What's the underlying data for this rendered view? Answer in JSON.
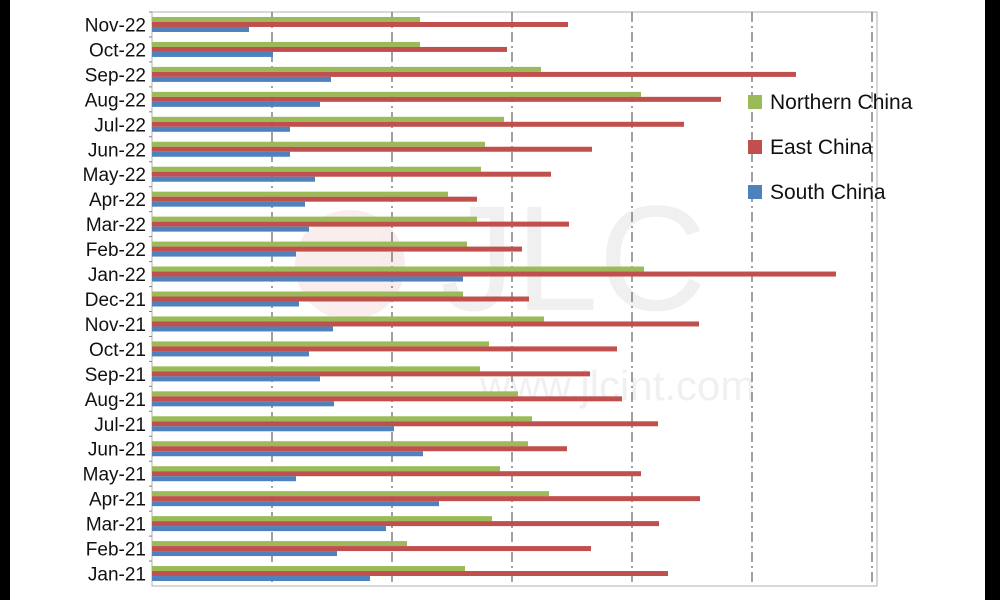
{
  "chart_data": {
    "type": "bar",
    "orientation": "horizontal",
    "title": "",
    "xlabel": "",
    "ylabel": "",
    "categories": [
      "Nov-22",
      "Oct-22",
      "Sep-22",
      "Aug-22",
      "Jul-22",
      "Jun-22",
      "May-22",
      "Apr-22",
      "Mar-22",
      "Feb-22",
      "Jan-22",
      "Dec-21",
      "Nov-21",
      "Oct-21",
      "Sep-21",
      "Aug-21",
      "Jul-21",
      "Jun-21",
      "May-21",
      "Apr-21",
      "Mar-21",
      "Feb-21",
      "Jan-21"
    ],
    "series": [
      {
        "name": "Northern China",
        "color": "#9bbb59",
        "values": [
          268,
          268,
          389,
          489,
          352,
          333,
          329,
          296,
          325,
          315,
          492,
          311,
          392,
          337,
          328,
          366,
          380,
          376,
          348,
          397,
          340,
          255,
          313
        ]
      },
      {
        "name": "East China",
        "color": "#c0504d",
        "values": [
          416,
          355,
          644,
          569,
          532,
          440,
          399,
          325,
          417,
          370,
          684,
          377,
          547,
          465,
          438,
          470,
          506,
          415,
          489,
          548,
          507,
          439,
          516
        ]
      },
      {
        "name": "South China",
        "color": "#4f81bd",
        "values": [
          97,
          121,
          179,
          168,
          138,
          138,
          163,
          153,
          157,
          144,
          311,
          147,
          181,
          157,
          168,
          182,
          242,
          271,
          144,
          287,
          234,
          185,
          218
        ]
      }
    ],
    "xlim": [
      0,
      725
    ],
    "grid": true,
    "legend_position": "right"
  }
}
